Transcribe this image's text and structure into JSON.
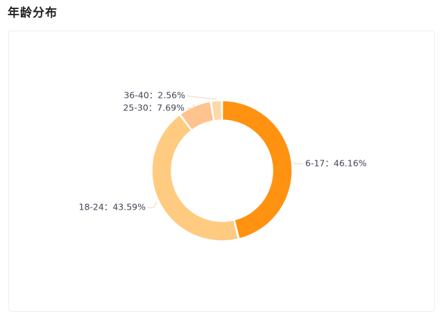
{
  "page": {
    "title": "年龄分布"
  },
  "colors": {
    "slices": [
      "#FF9210",
      "#FFCB80",
      "#FFC38F",
      "#FFD8A8"
    ],
    "label": "#444455",
    "leader": "#F2D4B0"
  },
  "chart_data": {
    "type": "pie",
    "variant": "donut",
    "title": "",
    "start_angle_deg": 90,
    "direction": "clockwise",
    "legend": "none",
    "label_separator": "：",
    "slices": [
      {
        "label": "6-17",
        "value": 46.16,
        "display": "46.16%"
      },
      {
        "label": "18-24",
        "value": 43.59,
        "display": "43.59%"
      },
      {
        "label": "25-30",
        "value": 7.69,
        "display": "7.69%"
      },
      {
        "label": "36-40",
        "value": 2.56,
        "display": "2.56%"
      }
    ]
  }
}
